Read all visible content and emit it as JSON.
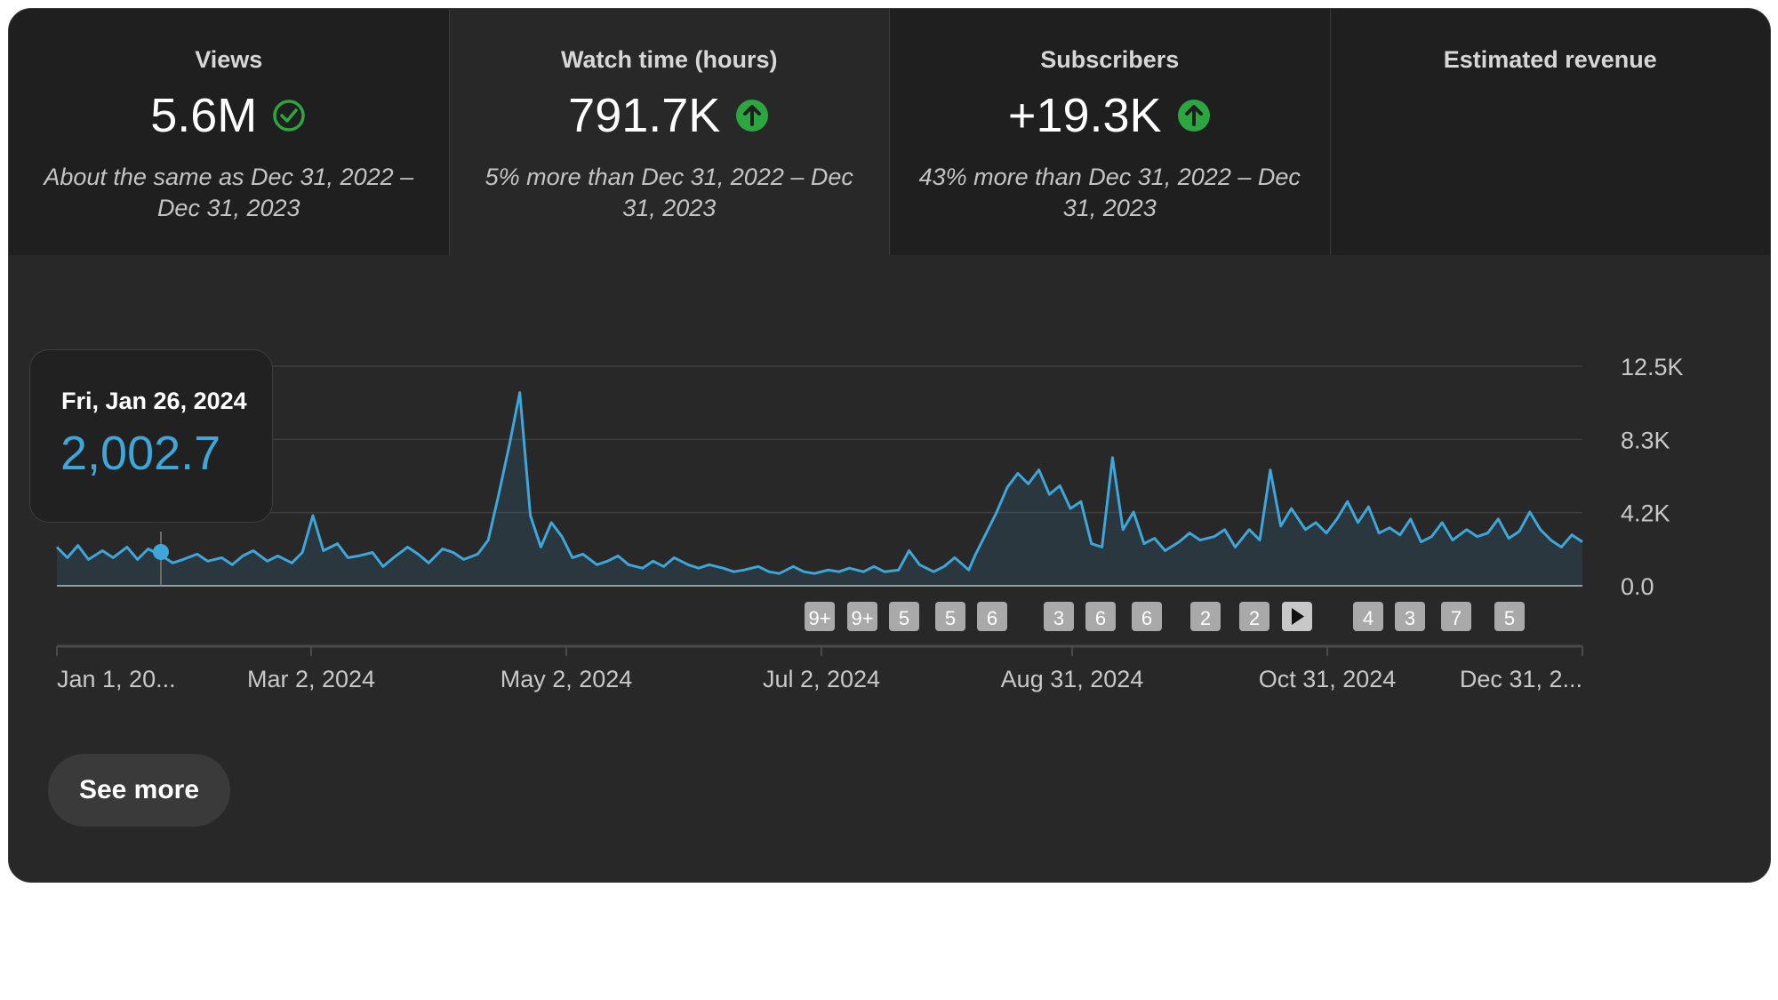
{
  "metrics": [
    {
      "title": "Views",
      "value": "5.6M",
      "status_icon": "check-circle-icon",
      "comparison": "About the same as Dec 31, 2022 – Dec 31, 2023"
    },
    {
      "title": "Watch time (hours)",
      "value": "791.7K",
      "status_icon": "arrow-up-circle-icon",
      "comparison": "5% more than Dec 31, 2022 – Dec 31, 2023"
    },
    {
      "title": "Subscribers",
      "value": "+19.3K",
      "status_icon": "arrow-up-circle-icon",
      "comparison": "43% more than Dec 31, 2022 – Dec 31, 2023"
    },
    {
      "title": "Estimated revenue",
      "value": "",
      "status_icon": "",
      "comparison": ""
    }
  ],
  "tooltip": {
    "date": "Fri, Jan 26, 2024",
    "value": "2,002.7"
  },
  "markers": [
    "9+",
    "9+",
    "5",
    "5",
    "6",
    "3",
    "6",
    "6",
    "2",
    "2",
    "play",
    "4",
    "3",
    "7",
    "5"
  ],
  "see_more_label": "See more",
  "colors": {
    "line": "#3ea6d8",
    "check": "#2ba640",
    "up": "#2ba640",
    "card": "#282828"
  },
  "chart_data": {
    "type": "area",
    "x_tick_labels": [
      "Jan 1, 20...",
      "Mar 2, 2024",
      "May 2, 2024",
      "Jul 2, 2024",
      "Aug 31, 2024",
      "Oct 31, 2024",
      "Dec 31, 2..."
    ],
    "y_tick_labels": [
      "12.5K",
      "8.3K",
      "4.2K",
      "0.0"
    ],
    "ylim": [
      0,
      12500
    ],
    "x_range": [
      "2024-01-01",
      "2024-12-31"
    ],
    "grid": true,
    "series": [
      {
        "values": [
          [
            0,
            2200
          ],
          [
            3,
            1600
          ],
          [
            6,
            2300
          ],
          [
            9,
            1500
          ],
          [
            13,
            2000
          ],
          [
            16,
            1600
          ],
          [
            20,
            2200
          ],
          [
            23,
            1500
          ],
          [
            26,
            2100
          ],
          [
            30,
            1700
          ],
          [
            33,
            1300
          ],
          [
            36,
            1500
          ],
          [
            40,
            1800
          ],
          [
            43,
            1400
          ],
          [
            47,
            1600
          ],
          [
            50,
            1200
          ],
          [
            53,
            1700
          ],
          [
            56,
            2000
          ],
          [
            60,
            1400
          ],
          [
            63,
            1700
          ],
          [
            67,
            1300
          ],
          [
            70,
            1900
          ],
          [
            73,
            4000
          ],
          [
            76,
            2000
          ],
          [
            80,
            2400
          ],
          [
            83,
            1600
          ],
          [
            86,
            1700
          ],
          [
            90,
            1900
          ],
          [
            93,
            1100
          ],
          [
            96,
            1600
          ],
          [
            100,
            2200
          ],
          [
            103,
            1800
          ],
          [
            106,
            1300
          ],
          [
            110,
            2100
          ],
          [
            113,
            1900
          ],
          [
            116,
            1500
          ],
          [
            120,
            1800
          ],
          [
            123,
            2600
          ],
          [
            126,
            5200
          ],
          [
            129,
            8000
          ],
          [
            132,
            11000
          ],
          [
            135,
            4000
          ],
          [
            138,
            2200
          ],
          [
            141,
            3600
          ],
          [
            144,
            2800
          ],
          [
            147,
            1600
          ],
          [
            150,
            1800
          ],
          [
            154,
            1200
          ],
          [
            157,
            1400
          ],
          [
            160,
            1700
          ],
          [
            163,
            1200
          ],
          [
            167,
            1000
          ],
          [
            170,
            1400
          ],
          [
            173,
            1100
          ],
          [
            176,
            1600
          ],
          [
            180,
            1200
          ],
          [
            183,
            1000
          ],
          [
            186,
            1200
          ],
          [
            190,
            1000
          ],
          [
            193,
            800
          ],
          [
            196,
            900
          ],
          [
            200,
            1100
          ],
          [
            203,
            800
          ],
          [
            206,
            700
          ],
          [
            210,
            1100
          ],
          [
            213,
            800
          ],
          [
            216,
            700
          ],
          [
            220,
            900
          ],
          [
            223,
            800
          ],
          [
            226,
            1000
          ],
          [
            230,
            800
          ],
          [
            233,
            1100
          ],
          [
            236,
            800
          ],
          [
            240,
            900
          ],
          [
            243,
            2000
          ],
          [
            246,
            1200
          ],
          [
            250,
            800
          ],
          [
            253,
            1100
          ],
          [
            256,
            1600
          ],
          [
            260,
            900
          ],
          [
            262,
            1800
          ],
          [
            265,
            3000
          ],
          [
            268,
            4200
          ],
          [
            271,
            5600
          ],
          [
            274,
            6400
          ],
          [
            277,
            5800
          ],
          [
            280,
            6600
          ],
          [
            283,
            5200
          ],
          [
            286,
            5700
          ],
          [
            289,
            4400
          ],
          [
            292,
            4800
          ],
          [
            295,
            2400
          ],
          [
            298,
            2200
          ],
          [
            301,
            7300
          ],
          [
            304,
            3200
          ],
          [
            307,
            4200
          ],
          [
            310,
            2400
          ],
          [
            313,
            2700
          ],
          [
            316,
            2000
          ],
          [
            320,
            2500
          ],
          [
            323,
            3000
          ],
          [
            326,
            2600
          ],
          [
            330,
            2800
          ],
          [
            333,
            3200
          ],
          [
            336,
            2200
          ],
          [
            340,
            3200
          ],
          [
            343,
            2600
          ],
          [
            346,
            6600
          ],
          [
            349,
            3400
          ],
          [
            352,
            4400
          ],
          [
            356,
            3200
          ],
          [
            359,
            3600
          ],
          [
            362,
            3000
          ],
          [
            365,
            3800
          ],
          [
            368,
            4800
          ],
          [
            371,
            3600
          ],
          [
            374,
            4500
          ],
          [
            377,
            3000
          ],
          [
            380,
            3300
          ],
          [
            383,
            2900
          ],
          [
            386,
            3800
          ],
          [
            389,
            2500
          ],
          [
            392,
            2800
          ],
          [
            395,
            3600
          ],
          [
            398,
            2600
          ],
          [
            402,
            3200
          ],
          [
            405,
            2800
          ],
          [
            408,
            3000
          ],
          [
            411,
            3800
          ],
          [
            414,
            2700
          ],
          [
            417,
            3100
          ],
          [
            420,
            4200
          ],
          [
            423,
            3200
          ],
          [
            426,
            2600
          ],
          [
            429,
            2200
          ],
          [
            432,
            2900
          ],
          [
            435,
            2500
          ]
        ]
      }
    ]
  }
}
